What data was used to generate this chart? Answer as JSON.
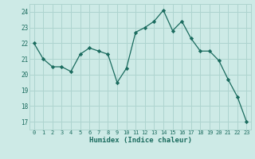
{
  "x": [
    0,
    1,
    2,
    3,
    4,
    5,
    6,
    7,
    8,
    9,
    10,
    11,
    12,
    13,
    14,
    15,
    16,
    17,
    18,
    19,
    20,
    21,
    22,
    23
  ],
  "y": [
    22.0,
    21.0,
    20.5,
    20.5,
    20.2,
    21.3,
    21.7,
    21.5,
    21.3,
    19.5,
    20.4,
    22.7,
    23.0,
    23.4,
    24.1,
    22.8,
    23.4,
    22.3,
    21.5,
    21.5,
    20.9,
    19.7,
    18.6,
    17.0
  ],
  "line_color": "#1a6b5e",
  "marker": "D",
  "marker_size": 2.2,
  "bg_color": "#cdeae6",
  "grid_color": "#aed4cf",
  "tick_label_color": "#1a6b5e",
  "xlabel": "Humidex (Indice chaleur)",
  "xlabel_color": "#1a6b5e",
  "xlim": [
    -0.5,
    23.5
  ],
  "ylim": [
    16.5,
    24.5
  ],
  "yticks": [
    17,
    18,
    19,
    20,
    21,
    22,
    23,
    24
  ],
  "xticks": [
    0,
    1,
    2,
    3,
    4,
    5,
    6,
    7,
    8,
    9,
    10,
    11,
    12,
    13,
    14,
    15,
    16,
    17,
    18,
    19,
    20,
    21,
    22,
    23
  ]
}
